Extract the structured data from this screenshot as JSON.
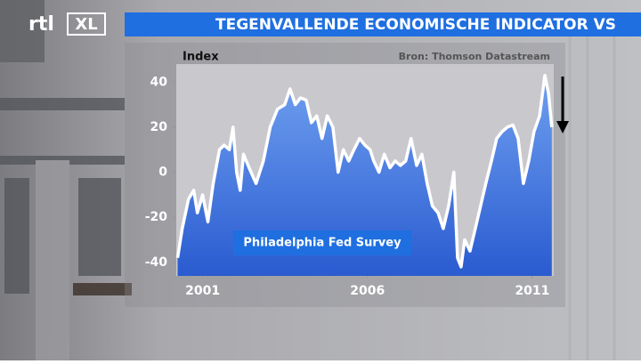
{
  "logo": [
    "rtl",
    "XL"
  ],
  "chart_data": {
    "type": "area",
    "title": "TEGENVALLENDE ECONOMISCHE INDICATOR VS",
    "ylabel": "Index",
    "source": "Bron: Thomson Datastream",
    "x": [
      2000.24,
      2000.38,
      2000.57,
      2000.73,
      2000.84,
      2001.0,
      2001.16,
      2001.32,
      2001.51,
      2001.65,
      2001.81,
      2001.92,
      2002.03,
      2002.14,
      2002.24,
      2002.41,
      2002.62,
      2002.84,
      2003.05,
      2003.27,
      2003.49,
      2003.65,
      2003.81,
      2003.97,
      2004.14,
      2004.3,
      2004.46,
      2004.62,
      2004.78,
      2004.95,
      2005.11,
      2005.27,
      2005.43,
      2005.59,
      2005.76,
      2005.92,
      2006.08,
      2006.19,
      2006.35,
      2006.51,
      2006.68,
      2006.84,
      2007.0,
      2007.16,
      2007.32,
      2007.49,
      2007.65,
      2007.81,
      2007.97,
      2008.14,
      2008.3,
      2008.46,
      2008.62,
      2008.73,
      2008.84,
      2008.95,
      2009.11,
      2009.27,
      2009.43,
      2009.59,
      2009.76,
      2009.92,
      2010.08,
      2010.24,
      2010.41,
      2010.57,
      2010.73,
      2010.89,
      2011.05,
      2011.22,
      2011.38,
      2011.49,
      2011.59
    ],
    "series": [
      {
        "name": "Philadelphia Fed Survey",
        "color": "#ffffff",
        "fill": "#3a6fd8",
        "values": [
          -38,
          -25,
          -12,
          -8,
          -18,
          -10,
          -22,
          -5,
          10,
          12,
          10,
          20,
          0,
          -8,
          8,
          2,
          -5,
          5,
          20,
          28,
          30,
          37,
          30,
          33,
          32,
          22,
          25,
          15,
          25,
          20,
          0,
          10,
          5,
          10,
          15,
          12,
          10,
          5,
          0,
          8,
          2,
          5,
          3,
          5,
          15,
          3,
          8,
          -5,
          -15,
          -18,
          -25,
          -15,
          0,
          -38,
          -42,
          -30,
          -35,
          -25,
          -15,
          -5,
          5,
          15,
          18,
          20,
          21,
          15,
          -5,
          5,
          18,
          25,
          43,
          35,
          20
        ]
      }
    ],
    "xlim": [
      2000.2,
      2011.65
    ],
    "xticks": [
      2001,
      2006,
      2011
    ],
    "ylim": [
      -46,
      48
    ],
    "yticks": [
      -40,
      -20,
      0,
      20,
      40
    ]
  }
}
